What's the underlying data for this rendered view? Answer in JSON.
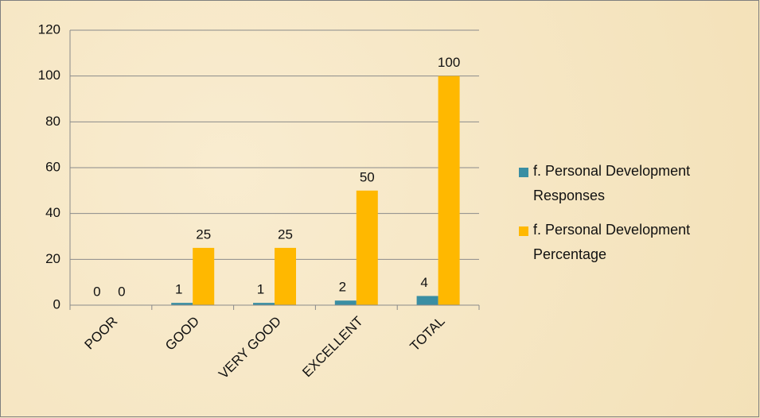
{
  "chart_data": {
    "type": "bar",
    "categories": [
      "POOR",
      "GOOD",
      "VERY GOOD",
      "EXCELLENT",
      "TOTAL"
    ],
    "series": [
      {
        "name": "f. Personal Development Responses",
        "color": "#3a8ea3",
        "values": [
          0,
          1,
          1,
          2,
          4
        ]
      },
      {
        "name": "f. Personal Development Percentage",
        "color": "#ffb800",
        "values": [
          0,
          25,
          25,
          50,
          100
        ]
      }
    ],
    "ylim": [
      0,
      120
    ],
    "yticks": [
      0,
      20,
      40,
      60,
      80,
      100,
      120
    ],
    "grid": true,
    "legend": "right",
    "data_labels": true
  }
}
